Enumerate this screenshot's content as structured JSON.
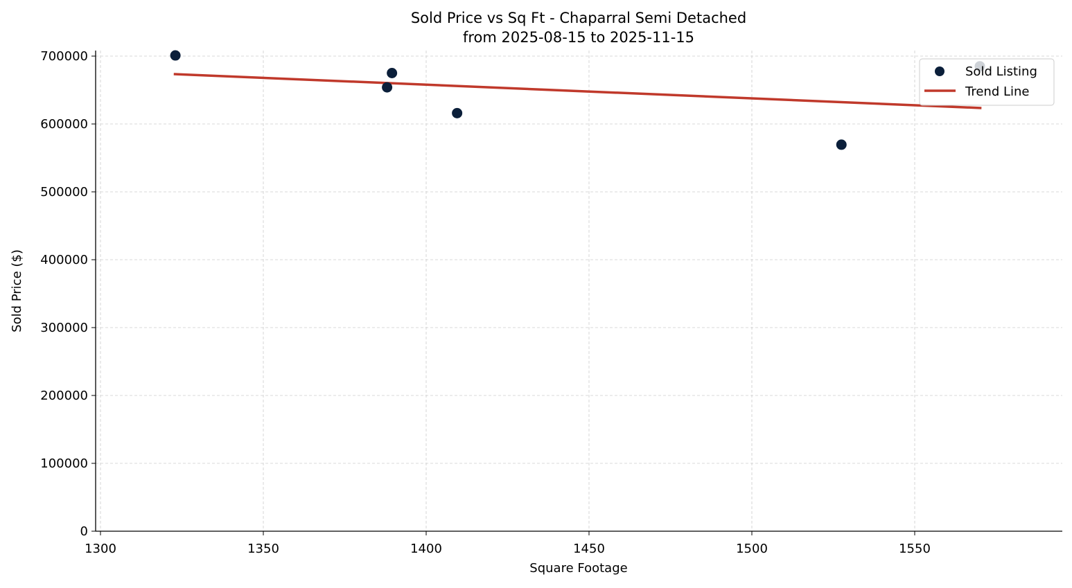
{
  "chart_data": {
    "type": "scatter",
    "title": "Sold Price vs Sq Ft - Chaparral Semi Detached",
    "subtitle": "from 2025-08-15 to 2025-11-15",
    "xlabel": "Square Footage",
    "ylabel": "Sold Price ($)",
    "xlim": [
      1298.5,
      1595
    ],
    "ylim": [
      0,
      708000
    ],
    "xticks": [
      "1300",
      "1350",
      "1400",
      "1450",
      "1500",
      "1550"
    ],
    "xtick_values": [
      1300,
      1350,
      1400,
      1450,
      1500,
      1550
    ],
    "yticks": [
      "0",
      "100000",
      "200000",
      "300000",
      "400000",
      "500000",
      "600000",
      "700000"
    ],
    "ytick_values": [
      0,
      100000,
      200000,
      300000,
      400000,
      500000,
      600000,
      700000
    ],
    "grid": true,
    "legend_position": "top-right",
    "series": [
      {
        "name": "Sold Listing",
        "type": "scatter",
        "color": "#0b1f3a",
        "points": [
          {
            "x": 1323,
            "y": 701000
          },
          {
            "x": 1389.5,
            "y": 675000
          },
          {
            "x": 1388,
            "y": 654000
          },
          {
            "x": 1409.5,
            "y": 616000
          },
          {
            "x": 1527.5,
            "y": 569500
          },
          {
            "x": 1570,
            "y": 685000
          }
        ]
      },
      {
        "name": "Trend Line",
        "type": "line",
        "color": "#c0392b",
        "points": [
          {
            "x": 1322.5,
            "y": 673500
          },
          {
            "x": 1570.5,
            "y": 623500
          }
        ]
      }
    ]
  }
}
